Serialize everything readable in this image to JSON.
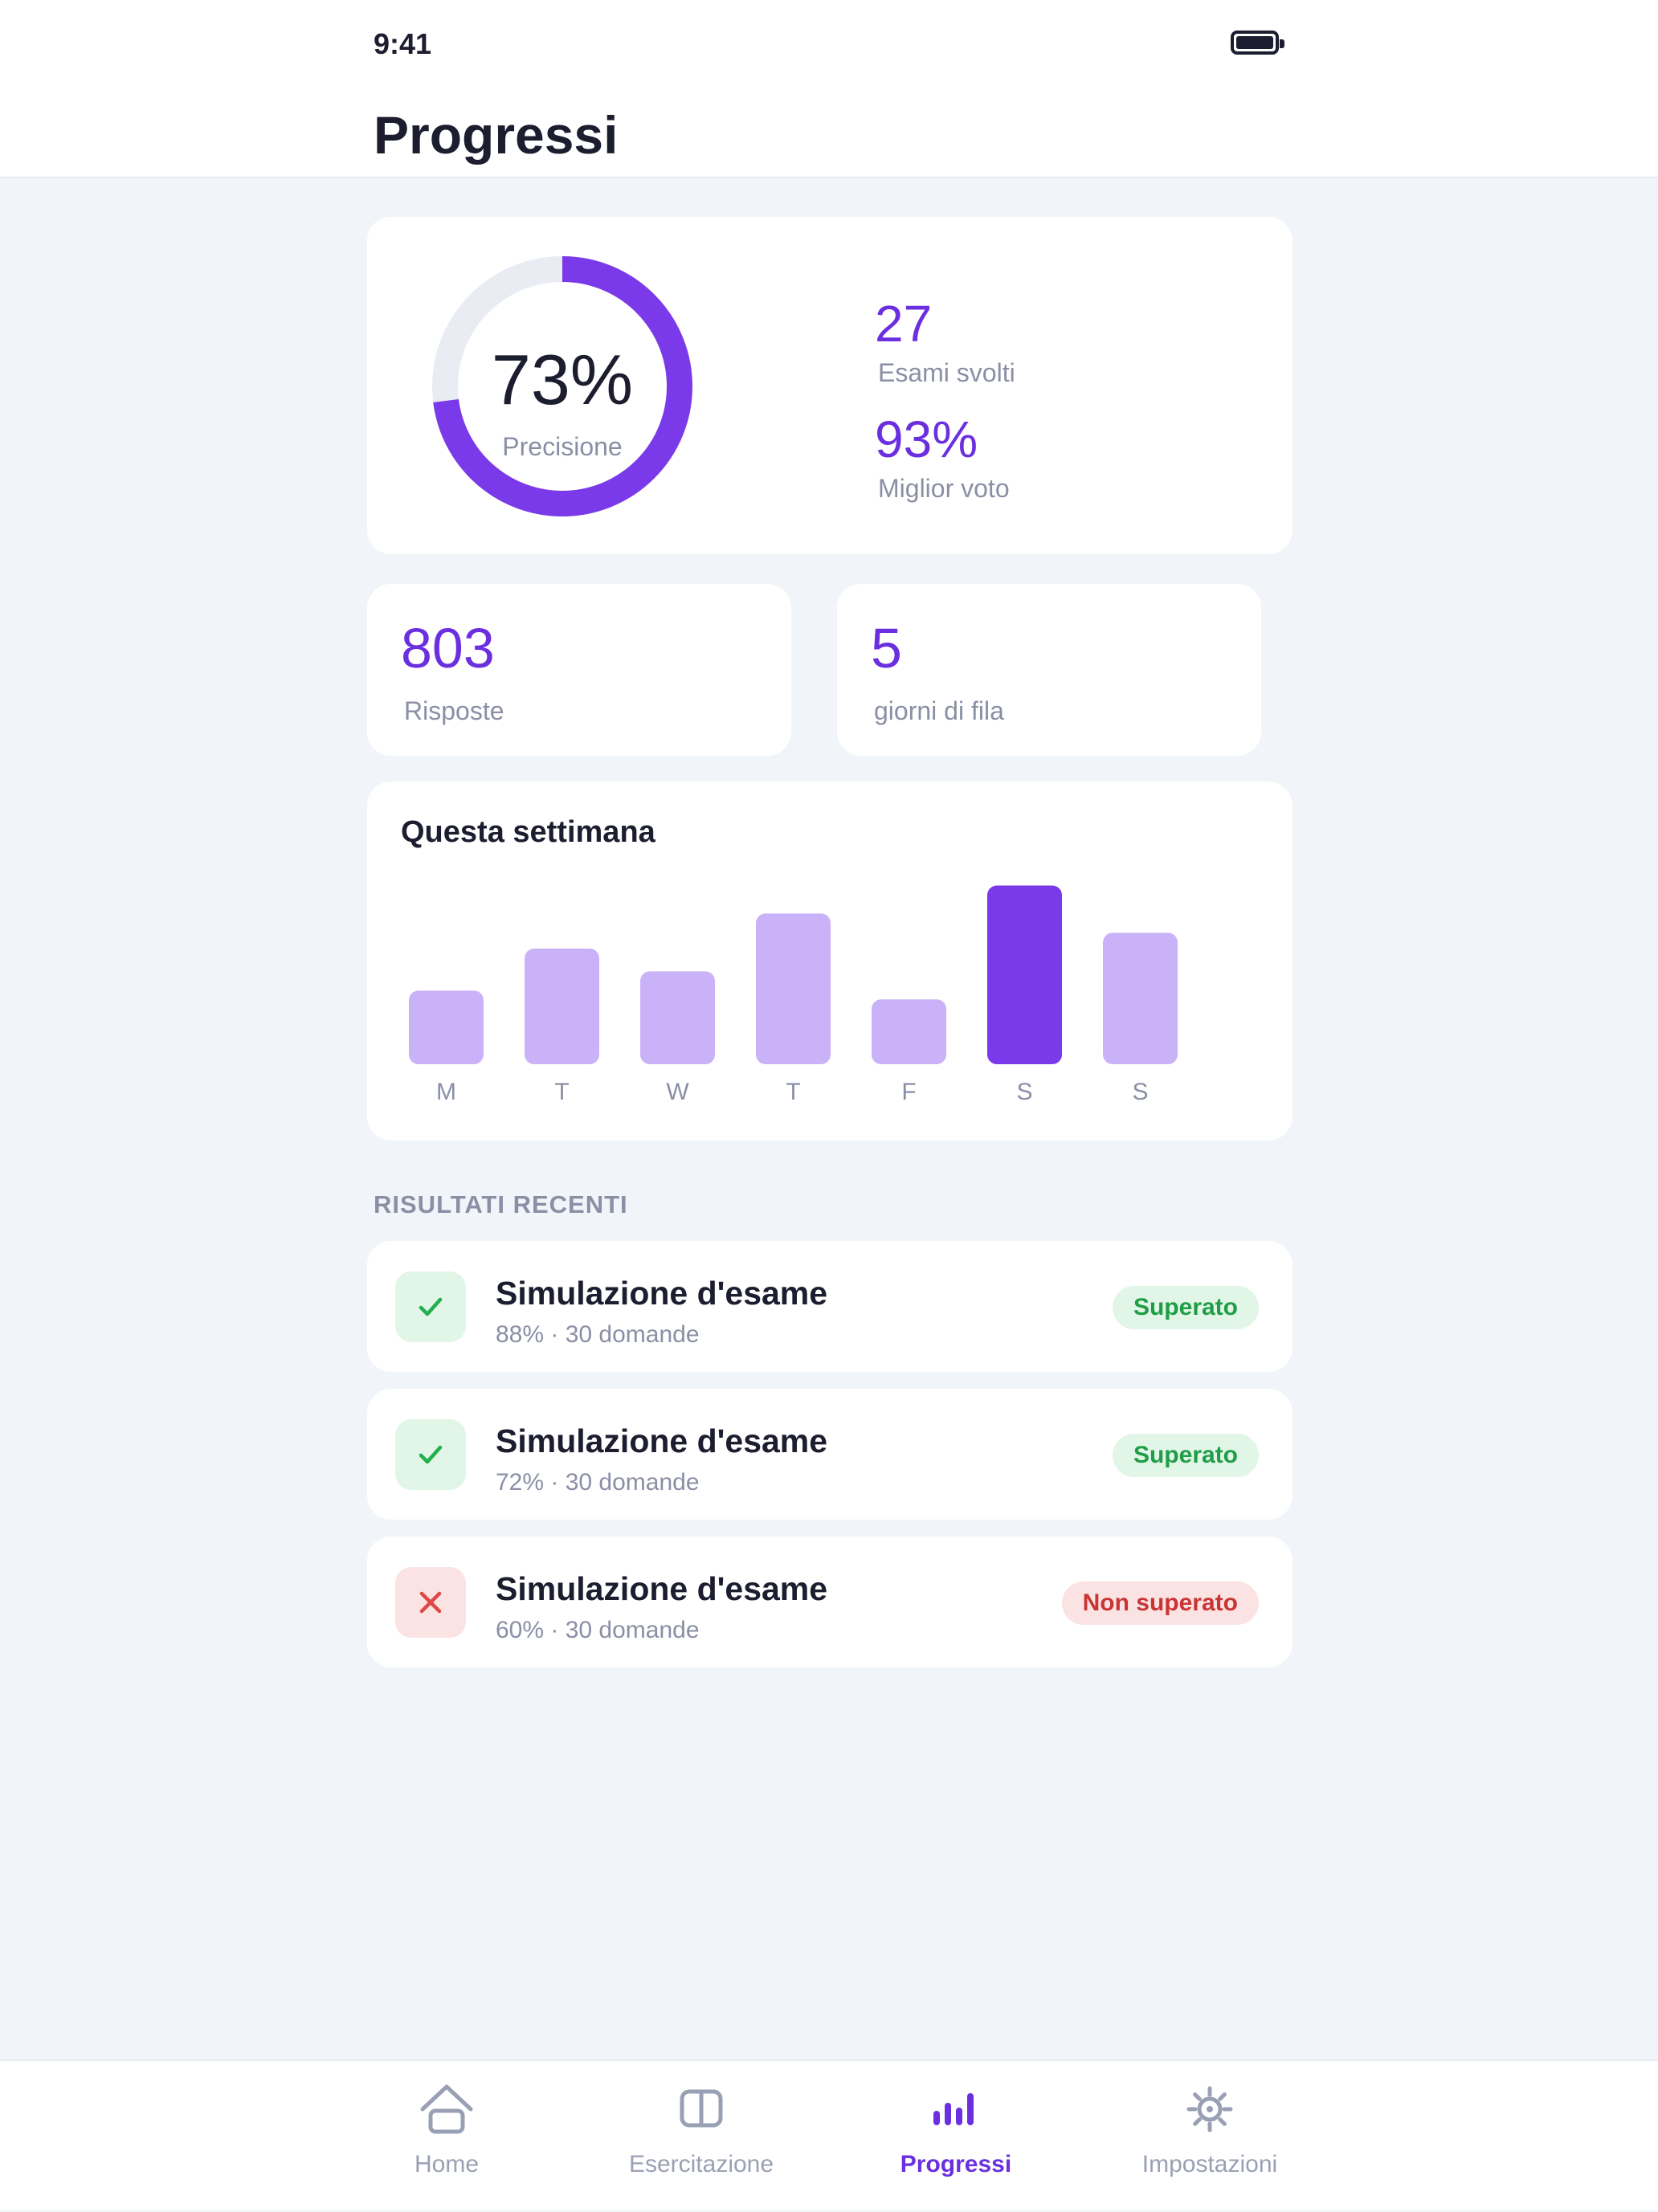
{
  "status_bar": {
    "time": "9:41"
  },
  "header": {
    "title": "Progressi"
  },
  "summary": {
    "accuracy_value": "73%",
    "accuracy_fraction": 0.73,
    "accuracy_label": "Precisione",
    "exams_value": "27",
    "exams_label": "Esami svolti",
    "best_value": "93%",
    "best_label": "Miglior voto"
  },
  "stats": [
    {
      "value": "803",
      "label": "Risposte"
    },
    {
      "value": "5",
      "label": "giorni di fila"
    }
  ],
  "chart_data": {
    "type": "bar",
    "title": "Questa settimana",
    "categories": [
      "M",
      "T",
      "W",
      "T",
      "F",
      "S",
      "S"
    ],
    "values": [
      42,
      66,
      53,
      86,
      37,
      102,
      75
    ],
    "highlight_index": 5,
    "ylim": [
      0,
      110
    ],
    "colors": {
      "bar": "#c9b2f7",
      "highlight": "#7b3aea"
    }
  },
  "recent": {
    "section_label": "RISULTATI RECENTI",
    "items": [
      {
        "title": "Simulazione d'esame",
        "subtitle": "88% · 30 domande",
        "status": "Superato",
        "status_type": "pass"
      },
      {
        "title": "Simulazione d'esame",
        "subtitle": "72% · 30 domande",
        "status": "Superato",
        "status_type": "pass"
      },
      {
        "title": "Simulazione d'esame",
        "subtitle": "60% · 30 domande",
        "status": "Non superato",
        "status_type": "fail"
      }
    ]
  },
  "tabbar": {
    "active": "Progressi",
    "items": [
      {
        "label": "Home",
        "icon": "home-icon"
      },
      {
        "label": "Esercitazione",
        "icon": "book-icon"
      },
      {
        "label": "Progressi",
        "icon": "bar-chart-icon"
      },
      {
        "label": "Impostazioni",
        "icon": "gear-icon"
      }
    ]
  },
  "colors": {
    "accent": "#6b2fe0",
    "pass": "#1f9d47",
    "fail": "#c93535",
    "muted": "#8a8fa5"
  }
}
